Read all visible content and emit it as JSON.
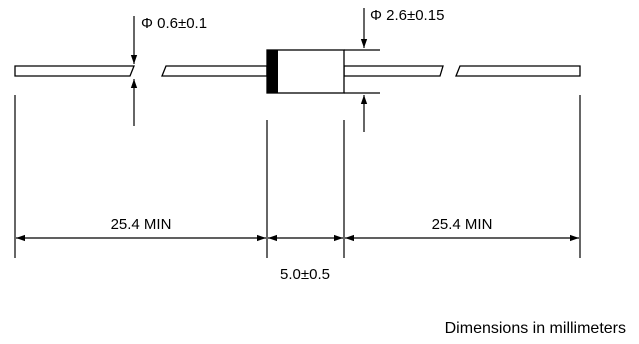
{
  "dimensions": {
    "lead_diameter": "Φ 0.6±0.1",
    "body_diameter": "Φ 2.6±0.15",
    "lead_length_left": "25.4 MIN",
    "lead_length_right": "25.4 MIN",
    "body_length": "5.0±0.5"
  },
  "note": "Dimensions in millimeters",
  "colors": {
    "ink": "#000000",
    "background": "#ffffff"
  }
}
